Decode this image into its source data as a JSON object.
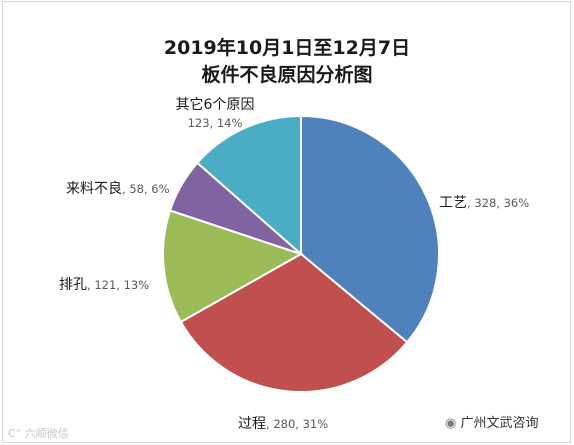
{
  "chart_data": {
    "type": "pie",
    "title_line1": "2019年10月1日至12月7日",
    "title_line2": "板件不良原因分析图",
    "slices": [
      {
        "label": "工艺",
        "value": 328,
        "percent": "36%",
        "color": "#4f81bd"
      },
      {
        "label": "过程",
        "value": 280,
        "percent": "31%",
        "color": "#c0504d"
      },
      {
        "label": "排孔",
        "value": 121,
        "percent": "13%",
        "color": "#9bbb59"
      },
      {
        "label": "来料不良",
        "value": 58,
        "percent": "6%",
        "color": "#8064a2"
      },
      {
        "label": "其它6个原因",
        "value": 123,
        "percent": "14%",
        "color": "#4bacc6"
      }
    ],
    "start_angle_deg": 0,
    "direction": "clockwise",
    "legend": "none"
  },
  "watermarks": {
    "left": "六顺微信",
    "right": "广州文武咨询"
  }
}
